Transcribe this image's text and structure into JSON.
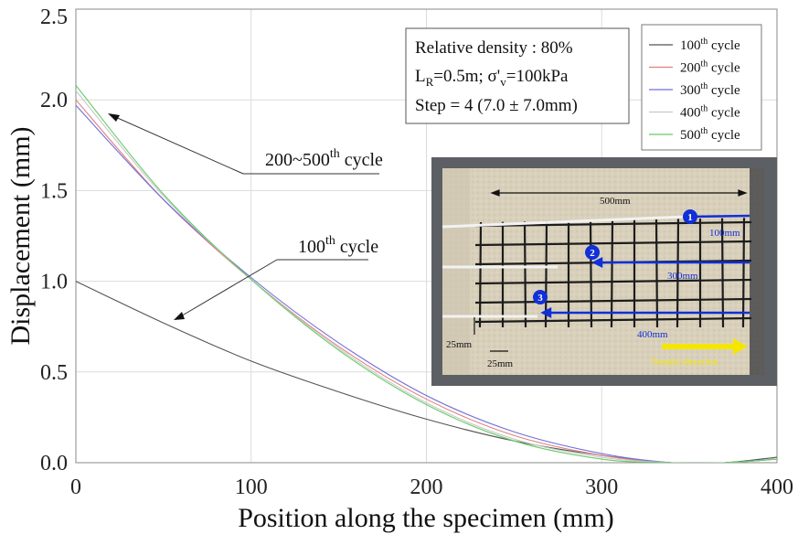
{
  "chart_data": {
    "type": "line",
    "xlabel": "Position along the specimen (mm)",
    "ylabel": "Displacement (mm)",
    "xlim": [
      0,
      400
    ],
    "ylim": [
      0,
      2.5
    ],
    "xticks": [
      "0",
      "100",
      "200",
      "300",
      "400"
    ],
    "yticks": [
      "0.0",
      "0.5",
      "1.0",
      "1.5",
      "2.0",
      "2.5"
    ],
    "grid": true,
    "legend_position": "top-right",
    "series": [
      {
        "name": "100",
        "color": "#555555",
        "x": [
          0,
          50,
          100,
          150,
          200,
          250,
          300,
          340,
          370,
          400
        ],
        "y": [
          1.0,
          0.77,
          0.56,
          0.39,
          0.24,
          0.12,
          0.04,
          0.0,
          0.0,
          0.03
        ]
      },
      {
        "name": "200",
        "color": "#e08080",
        "x": [
          0,
          50,
          100,
          150,
          200,
          250,
          300,
          340,
          370,
          400
        ],
        "y": [
          2.0,
          1.45,
          1.01,
          0.64,
          0.35,
          0.15,
          0.04,
          0.0,
          0.0,
          0.02
        ]
      },
      {
        "name": "300",
        "color": "#7070d8",
        "x": [
          0,
          50,
          100,
          150,
          200,
          250,
          300,
          340,
          370,
          400
        ],
        "y": [
          1.97,
          1.45,
          1.02,
          0.66,
          0.37,
          0.17,
          0.05,
          0.0,
          0.0,
          0.02
        ]
      },
      {
        "name": "400",
        "color": "#c8c8c8",
        "x": [
          0,
          50,
          100,
          150,
          200,
          250,
          300,
          340,
          370,
          400
        ],
        "y": [
          2.05,
          1.47,
          1.01,
          0.63,
          0.33,
          0.13,
          0.03,
          0.0,
          0.0,
          0.02
        ]
      },
      {
        "name": "500",
        "color": "#66cc66",
        "x": [
          0,
          50,
          100,
          150,
          200,
          250,
          300,
          340,
          370,
          400
        ],
        "y": [
          2.08,
          1.48,
          1.01,
          0.62,
          0.32,
          0.12,
          0.02,
          0.0,
          0.0,
          0.02
        ]
      }
    ],
    "legend": {
      "suffix_sup": "th",
      "suffix_text": " cycle"
    },
    "info_box": {
      "line1": "Relative density : 80%",
      "line2_a": "L",
      "line2_sub": "R",
      "line2_b": "=0.5m; σ'",
      "line2_sub2": "v",
      "line2_c": "=100kPa",
      "line3": "Step = 4 (7.0 ± 7.0mm)"
    },
    "annotations": {
      "a1_prefix": "200~500",
      "a1_sup": "th",
      "a1_suffix": " cycle",
      "a2_prefix": "100",
      "a2_sup": "th",
      "a2_suffix": " cycle"
    },
    "photo_labels": {
      "len500": "500mm",
      "len100": "100mm",
      "len300": "300mm",
      "len400": "400mm",
      "w25a": "25mm",
      "w25b": "25mm",
      "tensile": "Tensile direction",
      "m1": "1",
      "m2": "2",
      "m3": "3"
    }
  }
}
